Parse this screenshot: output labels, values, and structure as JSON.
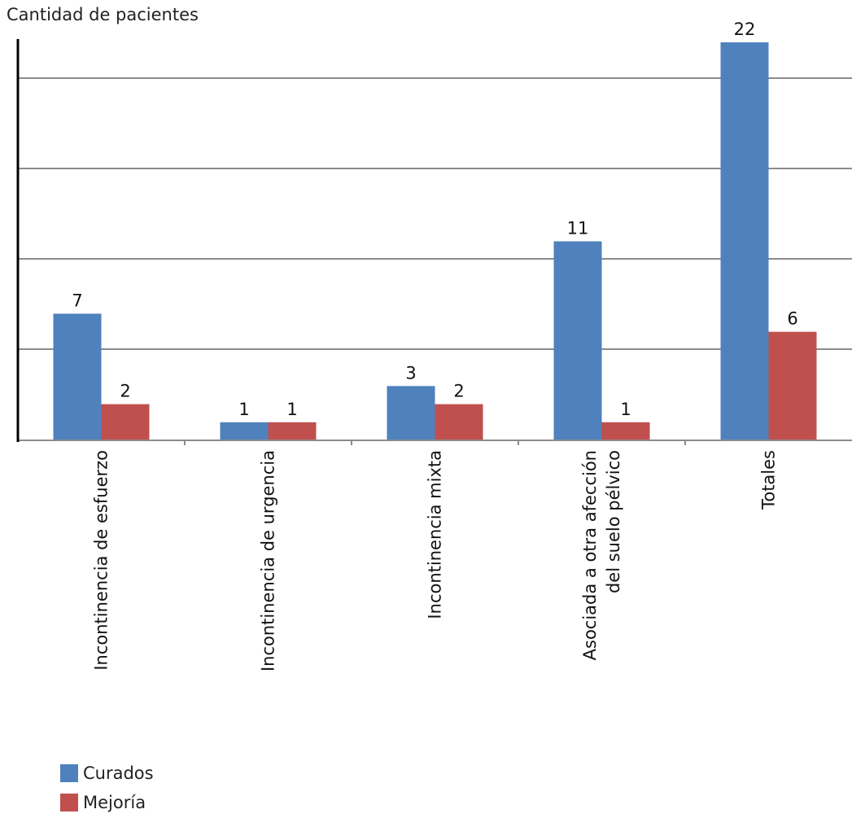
{
  "chart_data": {
    "type": "bar",
    "title": "",
    "ylabel": "Cantidad de pacientes",
    "xlabel": "",
    "ylim": [
      0,
      22
    ],
    "grid": true,
    "legend_position": "bottom-left",
    "categories": [
      [
        "Incontinencia de esfuerzo"
      ],
      [
        "Incontinencia de urgencia"
      ],
      [
        "Incontinencia mixta"
      ],
      [
        "Asociada a otra afección",
        "del suelo pélvico"
      ],
      [
        "Totales"
      ]
    ],
    "series": [
      {
        "name": "Curados",
        "color": "#4f81bd",
        "values": [
          7,
          1,
          3,
          11,
          22
        ]
      },
      {
        "name": "Mejoría",
        "color": "#c0504d",
        "values": [
          2,
          1,
          2,
          1,
          6
        ]
      }
    ]
  }
}
